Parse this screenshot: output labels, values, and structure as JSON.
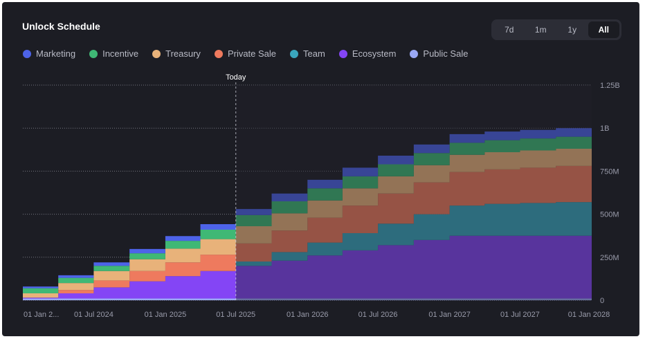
{
  "header": {
    "title": "Unlock Schedule",
    "ranges": [
      "7d",
      "1m",
      "1y",
      "All"
    ],
    "active_range": "All"
  },
  "colors": {
    "Marketing": "#4d63e8",
    "Incentive": "#3fb875",
    "Treasury": "#e8b27a",
    "Private Sale": "#ee7a5e",
    "Team": "#3aa6bd",
    "Ecosystem": "#8445f5",
    "Public Sale": "#9aa8f4",
    "background": "#1c1d24"
  },
  "chart_data": {
    "type": "area",
    "stacked": true,
    "step": true,
    "x": [
      "2024-01-01",
      "2024-04-01",
      "2024-07-01",
      "2024-10-01",
      "2025-01-01",
      "2025-04-01",
      "2025-07-01",
      "2025-10-01",
      "2026-01-01",
      "2026-04-01",
      "2026-07-01",
      "2026-10-01",
      "2027-01-01",
      "2027-04-01",
      "2027-07-01",
      "2027-10-01",
      "2028-01-01"
    ],
    "x_tick_labels": [
      "01 Jan 2...",
      "01 Jul 2024",
      "01 Jan 2025",
      "01 Jul 2025",
      "01 Jan 2026",
      "01 Jul 2026",
      "01 Jan 2027",
      "01 Jul 2027",
      "01 Jan 2028"
    ],
    "y_tick_labels": [
      "0",
      "250M",
      "500M",
      "750M",
      "1B",
      "1.25B"
    ],
    "ylim": [
      0,
      1250000000
    ],
    "annotation": {
      "label": "Today",
      "x": "2025-07-01"
    },
    "series": [
      {
        "name": "Public Sale",
        "values": [
          10000000,
          10000000,
          10000000,
          10000000,
          10000000,
          10000000,
          10000000,
          10000000,
          10000000,
          10000000,
          10000000,
          10000000,
          10000000,
          10000000,
          10000000,
          10000000,
          10000000
        ]
      },
      {
        "name": "Ecosystem",
        "values": [
          5000000,
          30000000,
          65000000,
          100000000,
          130000000,
          160000000,
          190000000,
          220000000,
          250000000,
          280000000,
          310000000,
          340000000,
          365000000,
          365000000,
          365000000,
          365000000,
          365000000
        ]
      },
      {
        "name": "Team",
        "values": [
          0,
          0,
          0,
          0,
          0,
          0,
          25000000,
          50000000,
          75000000,
          100000000,
          125000000,
          150000000,
          175000000,
          185000000,
          190000000,
          195000000,
          200000000
        ]
      },
      {
        "name": "Private Sale",
        "values": [
          0,
          20000000,
          40000000,
          60000000,
          80000000,
          95000000,
          105000000,
          125000000,
          145000000,
          160000000,
          175000000,
          185000000,
          195000000,
          200000000,
          205000000,
          210000000,
          210000000
        ]
      },
      {
        "name": "Treasury",
        "values": [
          25000000,
          40000000,
          55000000,
          68000000,
          80000000,
          90000000,
          100000000,
          100000000,
          100000000,
          100000000,
          100000000,
          100000000,
          100000000,
          100000000,
          100000000,
          100000000,
          100000000
        ]
      },
      {
        "name": "Incentive",
        "values": [
          30000000,
          30000000,
          30000000,
          35000000,
          45000000,
          55000000,
          65000000,
          70000000,
          70000000,
          70000000,
          70000000,
          70000000,
          70000000,
          70000000,
          70000000,
          70000000,
          70000000
        ]
      },
      {
        "name": "Marketing",
        "values": [
          10000000,
          15000000,
          20000000,
          25000000,
          28000000,
          32000000,
          35000000,
          45000000,
          50000000,
          50000000,
          50000000,
          50000000,
          50000000,
          50000000,
          50000000,
          50000000,
          50000000
        ]
      }
    ]
  }
}
